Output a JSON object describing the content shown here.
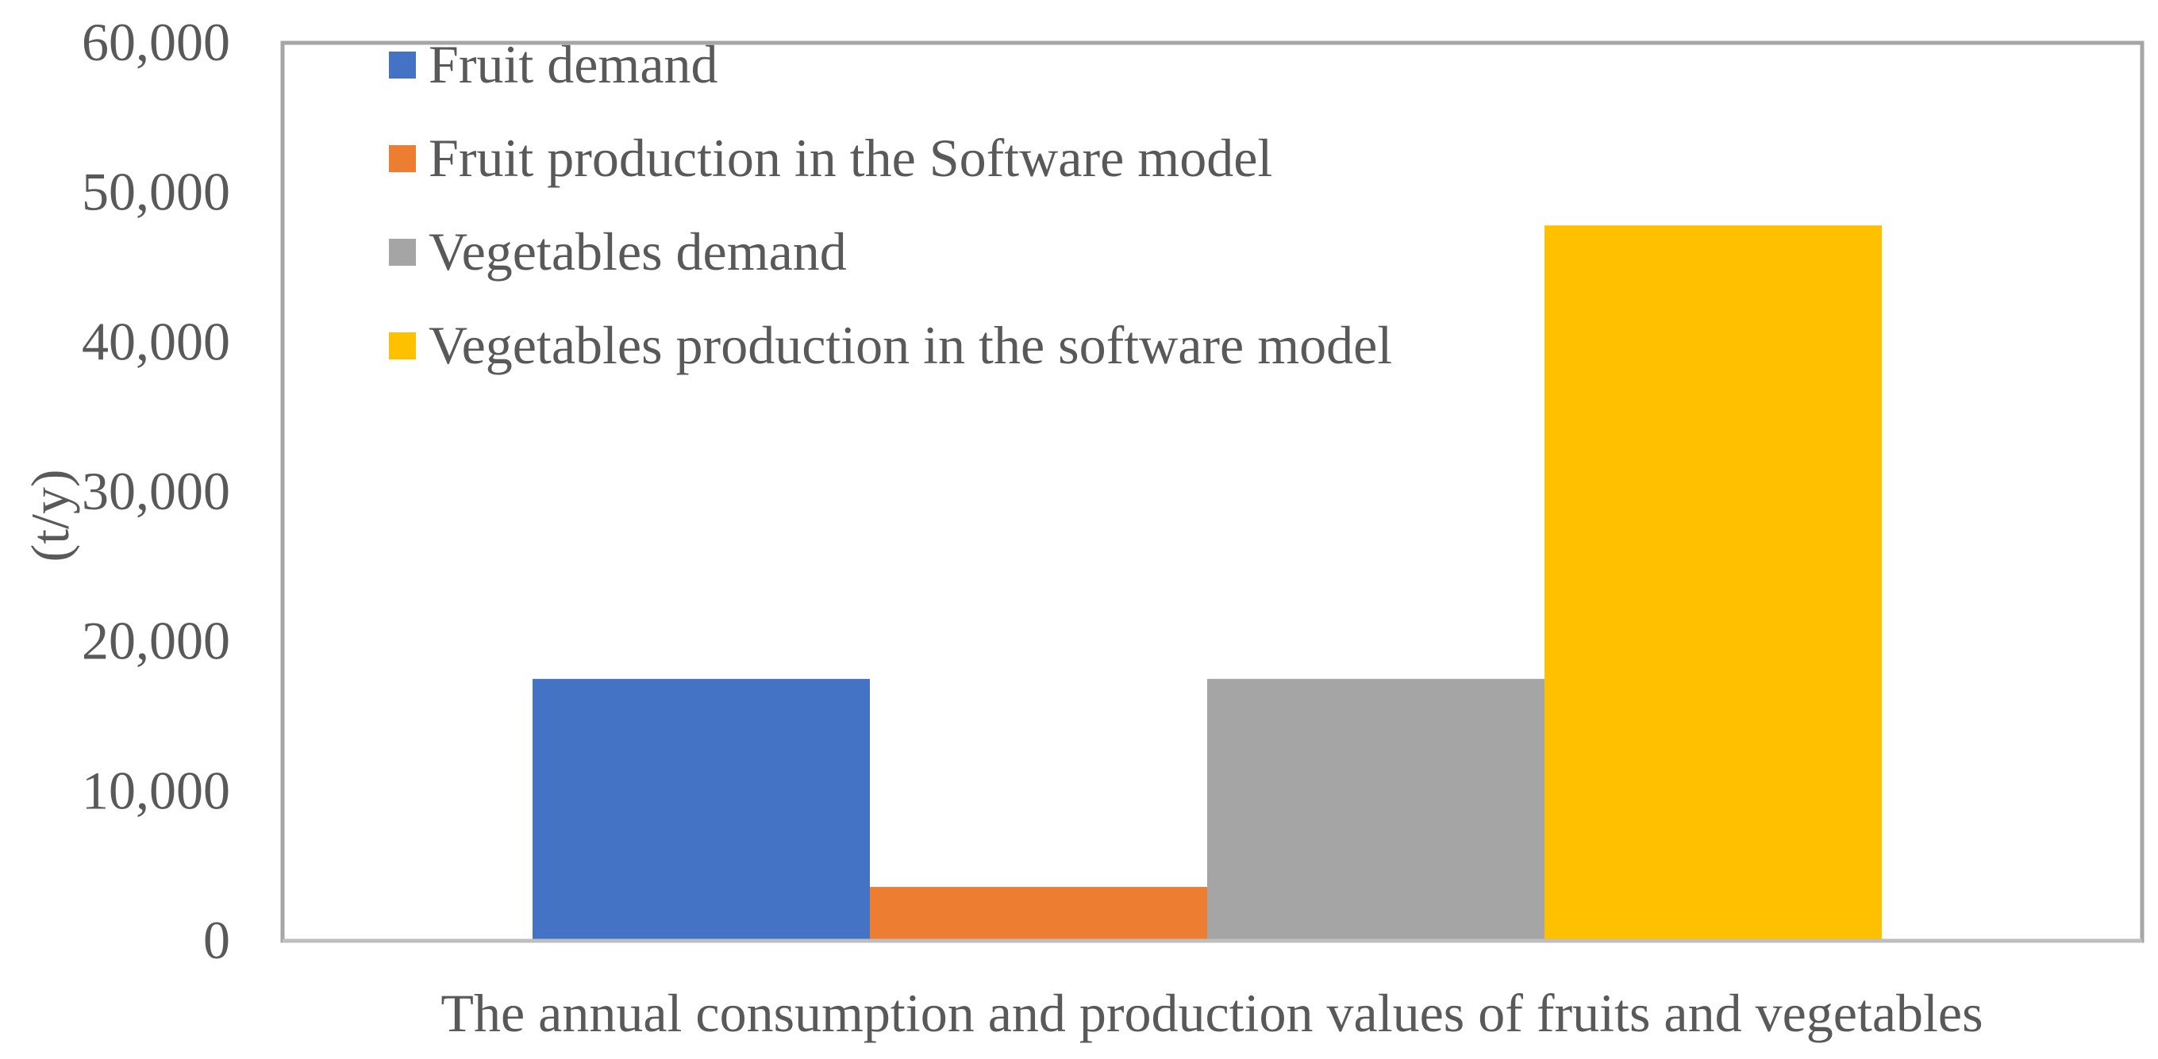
{
  "chart_data": {
    "type": "bar",
    "title": "",
    "xlabel": "The annual consumption and production values of fruits and vegetables",
    "ylabel": "(t/y)",
    "ylim": [
      0,
      60000
    ],
    "y_ticks": [
      0,
      10000,
      20000,
      30000,
      40000,
      50000,
      60000
    ],
    "y_tick_labels": [
      "0",
      "10,000",
      "20,000",
      "30,000",
      "40,000",
      "50,000",
      "60,000"
    ],
    "grid": false,
    "legend_position": "top-left",
    "categories": [
      "The annual consumption and production values of fruits and vegetables"
    ],
    "series": [
      {
        "name": "Fruit demand",
        "values": [
          17500
        ],
        "color": "#4472C4"
      },
      {
        "name": "Fruit production in the Software model",
        "values": [
          3600
        ],
        "color": "#ED7D31"
      },
      {
        "name": "Vegetables demand",
        "values": [
          17500
        ],
        "color": "#A5A5A5"
      },
      {
        "name": "Vegetables production in the software model",
        "values": [
          47800
        ],
        "color": "#FFC000"
      }
    ],
    "axis_color": "#BFBFBF",
    "frame_color": "#A6A6A6"
  }
}
